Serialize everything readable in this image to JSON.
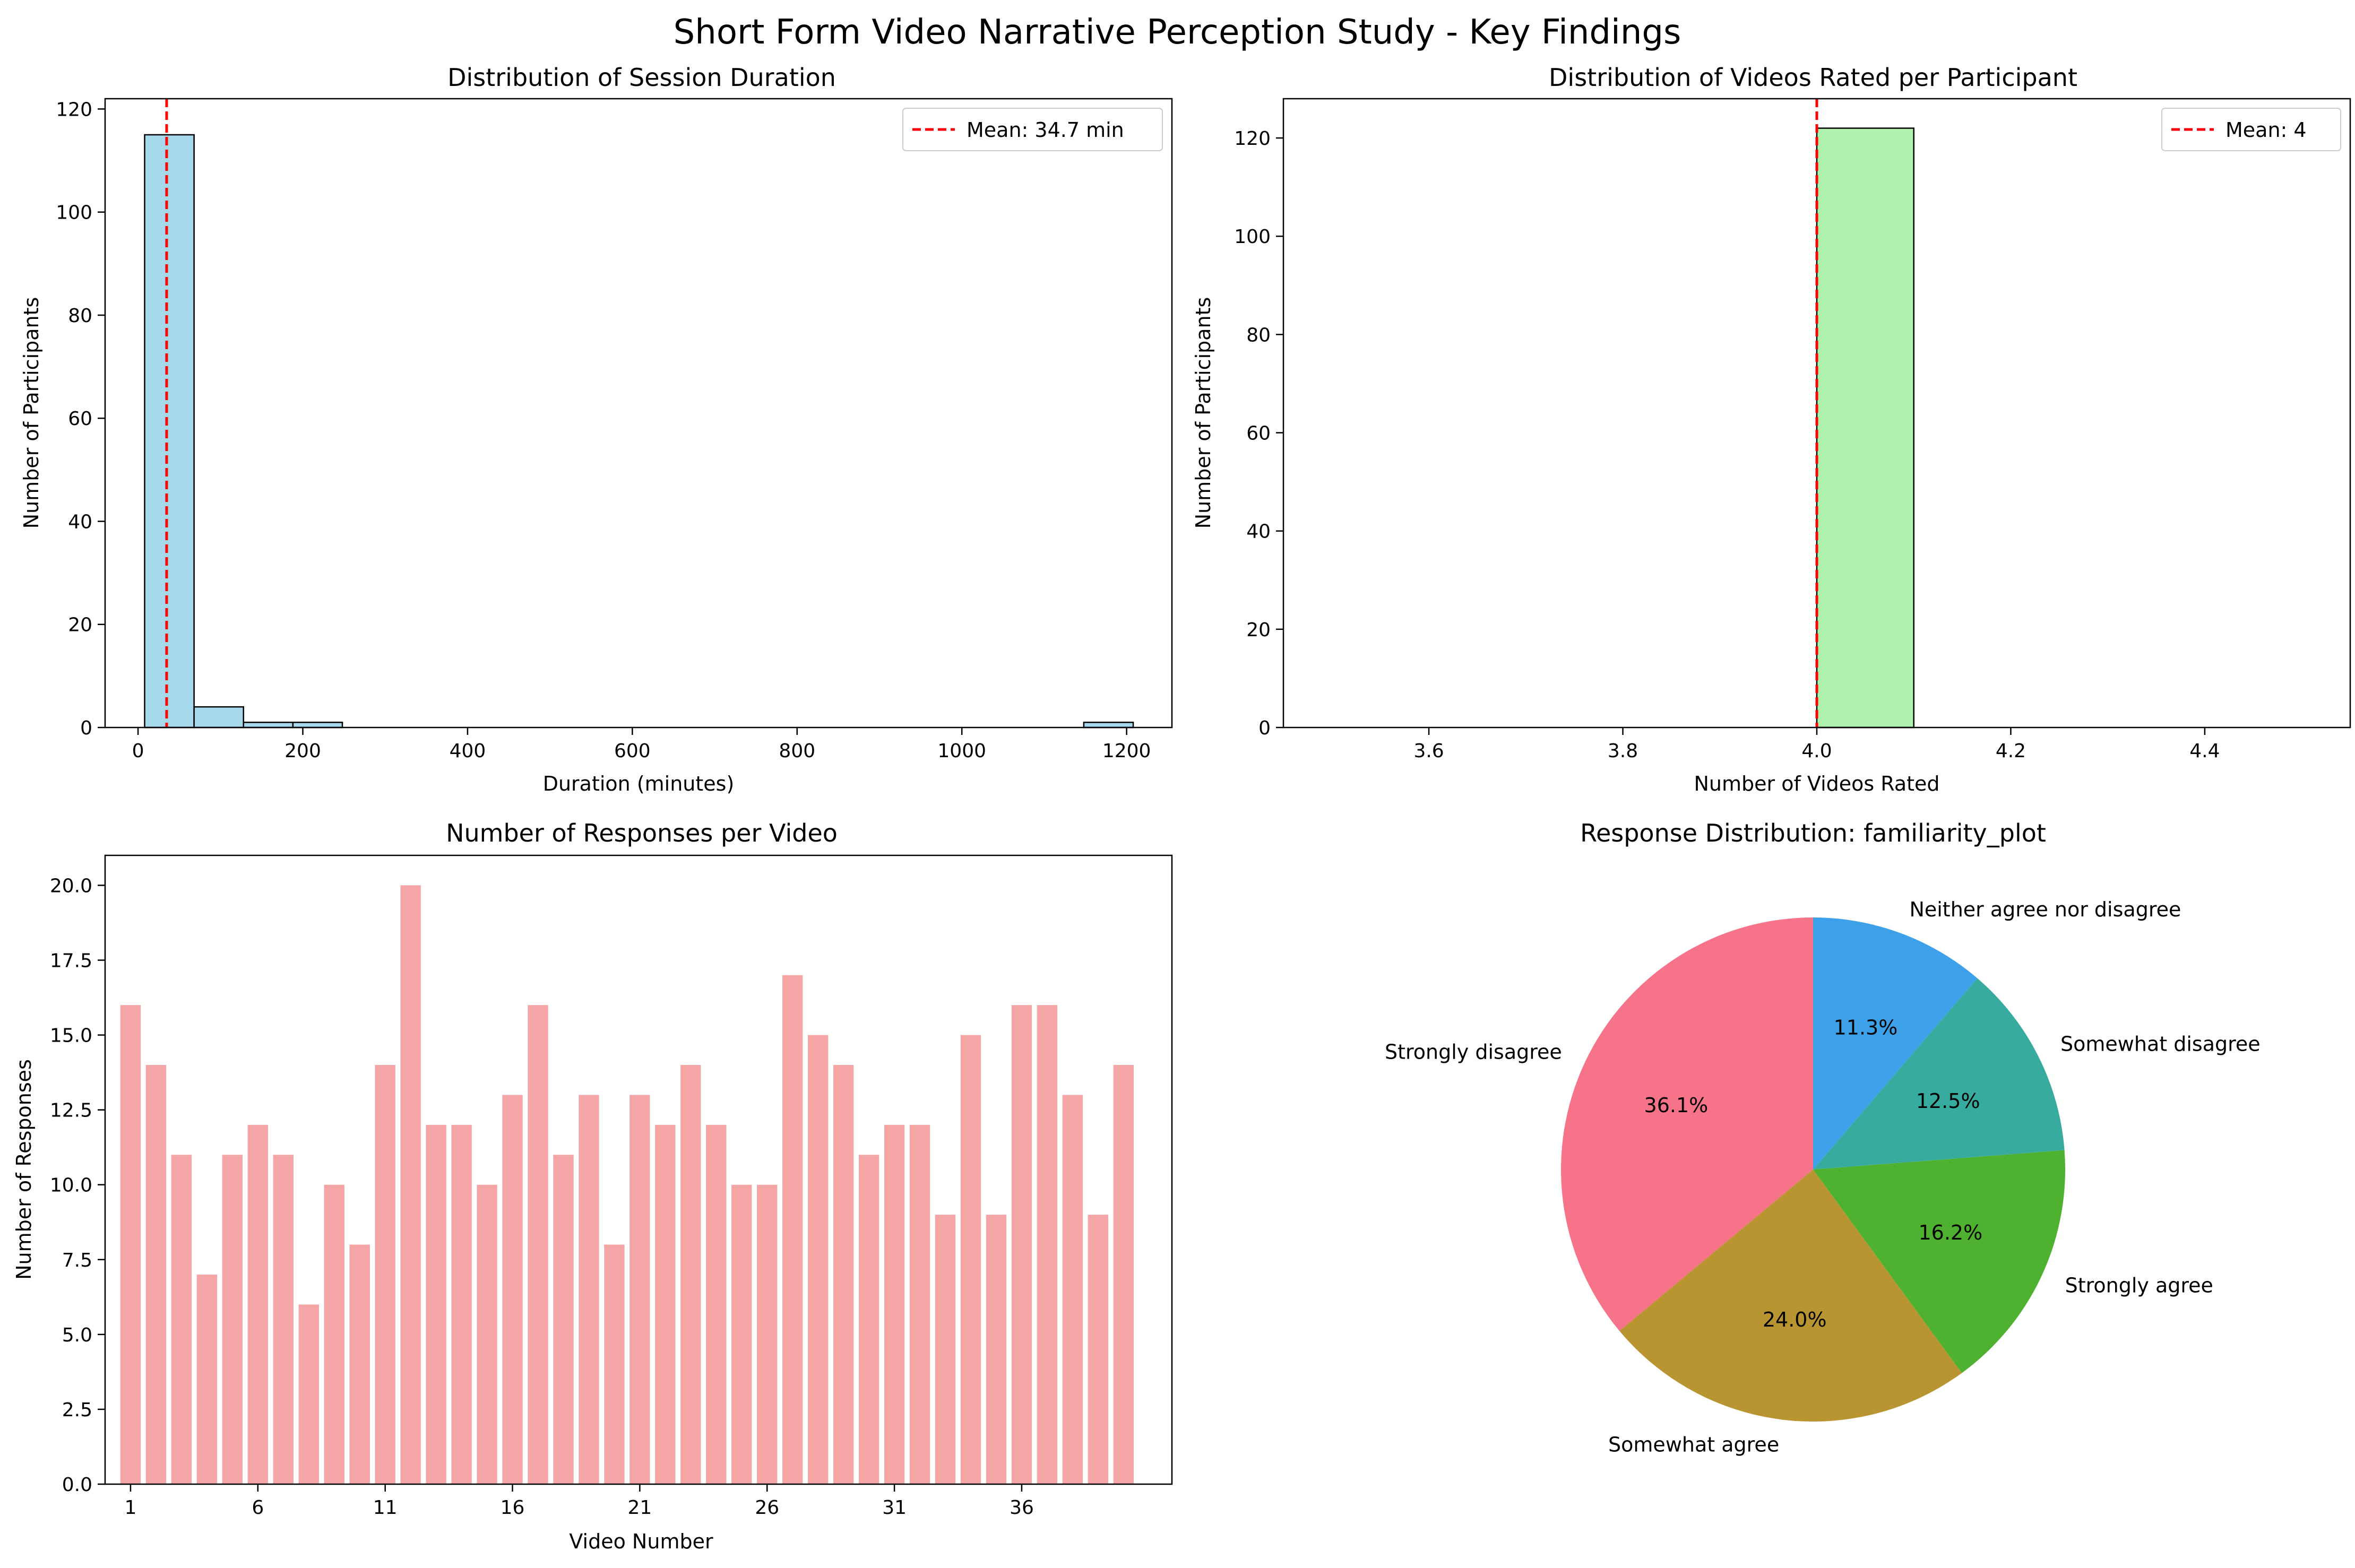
{
  "suptitle": "Short Form Video Narrative Perception Study - Key Findings",
  "colors": {
    "hist1_fill": "#a6d8ec",
    "hist2_fill": "#aef2ae",
    "bar_fill": "#f4a6a6",
    "edge": "#000000",
    "mean_line": "#ff0000",
    "pie": [
      "#f6738a",
      "#b99532",
      "#4fb130",
      "#36ab9e",
      "#3ca1e8"
    ]
  },
  "chart_data": [
    {
      "id": "session-duration",
      "type": "bar",
      "title": "Distribution of Session Duration",
      "xlabel": "Duration (minutes)",
      "ylabel": "Number of Participants",
      "xlim": [
        -40,
        1255
      ],
      "ylim": [
        0,
        122
      ],
      "xticks": [
        0,
        200,
        400,
        600,
        800,
        1000,
        1200
      ],
      "yticks": [
        0,
        20,
        40,
        60,
        80,
        100,
        120
      ],
      "bins": [
        {
          "x0": 8,
          "x1": 68,
          "count": 115
        },
        {
          "x0": 68,
          "x1": 128,
          "count": 4
        },
        {
          "x0": 128,
          "x1": 188,
          "count": 1
        },
        {
          "x0": 188,
          "x1": 248,
          "count": 1
        },
        {
          "x0": 1148,
          "x1": 1208,
          "count": 1
        }
      ],
      "mean_line": {
        "x": 34.7,
        "label": "Mean: 34.7 min"
      },
      "legend": "top-right",
      "grid": false
    },
    {
      "id": "videos-rated",
      "type": "bar",
      "title": "Distribution of Videos Rated per Participant",
      "xlabel": "Number of Videos Rated",
      "ylabel": "Number of Participants",
      "xlim": [
        3.45,
        4.55
      ],
      "ylim": [
        0,
        128
      ],
      "xticks": [
        3.6,
        3.8,
        4.0,
        4.2,
        4.4
      ],
      "xtick_labels": [
        "3.6",
        "3.8",
        "4.0",
        "4.2",
        "4.4"
      ],
      "yticks": [
        0,
        20,
        40,
        60,
        80,
        100,
        120
      ],
      "baseline_range": [
        3.5,
        4.5
      ],
      "bins": [
        {
          "x0": 4.0,
          "x1": 4.1,
          "count": 122
        }
      ],
      "mean_line": {
        "x": 4.0,
        "label": "Mean: 4"
      },
      "legend": "top-right",
      "grid": false
    },
    {
      "id": "responses-per-video",
      "type": "bar",
      "title": "Number of Responses per Video",
      "xlabel": "Video Number",
      "ylabel": "Number of Responses",
      "xlim": [
        -1,
        40.9
      ],
      "ylim": [
        0,
        21
      ],
      "xticks": [
        1,
        6,
        11,
        16,
        21,
        26,
        31,
        36
      ],
      "yticks": [
        0.0,
        2.5,
        5.0,
        7.5,
        10.0,
        12.5,
        15.0,
        17.5,
        20.0
      ],
      "ytick_labels": [
        "0.0",
        "2.5",
        "5.0",
        "7.5",
        "10.0",
        "12.5",
        "15.0",
        "17.5",
        "20.0"
      ],
      "categories": [
        1,
        2,
        3,
        4,
        5,
        6,
        7,
        8,
        9,
        10,
        11,
        12,
        13,
        14,
        15,
        16,
        17,
        18,
        19,
        20,
        21,
        22,
        23,
        24,
        25,
        26,
        27,
        28,
        29,
        30,
        31,
        32,
        33,
        34,
        35,
        36,
        37,
        38,
        39,
        40
      ],
      "values": [
        16,
        14,
        11,
        7,
        11,
        12,
        11,
        6,
        10,
        8,
        14,
        20,
        12,
        12,
        10,
        13,
        16,
        11,
        13,
        8,
        13,
        12,
        14,
        12,
        10,
        10,
        17,
        15,
        14,
        11,
        12,
        12,
        9,
        15,
        9,
        16,
        16,
        13,
        9,
        14
      ],
      "grid": false
    },
    {
      "id": "familiarity-pie",
      "type": "pie",
      "title": "Response Distribution: familiarity_plot",
      "slices": [
        {
          "label": "Strongly disagree",
          "pct": "36.1%",
          "value": 36.1
        },
        {
          "label": "Somewhat agree",
          "pct": "24.0%",
          "value": 24.0
        },
        {
          "label": "Strongly agree",
          "pct": "16.2%",
          "value": 16.2
        },
        {
          "label": "Somewhat disagree",
          "pct": "12.5%",
          "value": 12.5
        },
        {
          "label": "Neither agree nor disagree",
          "pct": "11.3%",
          "value": 11.3
        }
      ],
      "start_angle": 90,
      "direction": "counterclockwise"
    }
  ]
}
